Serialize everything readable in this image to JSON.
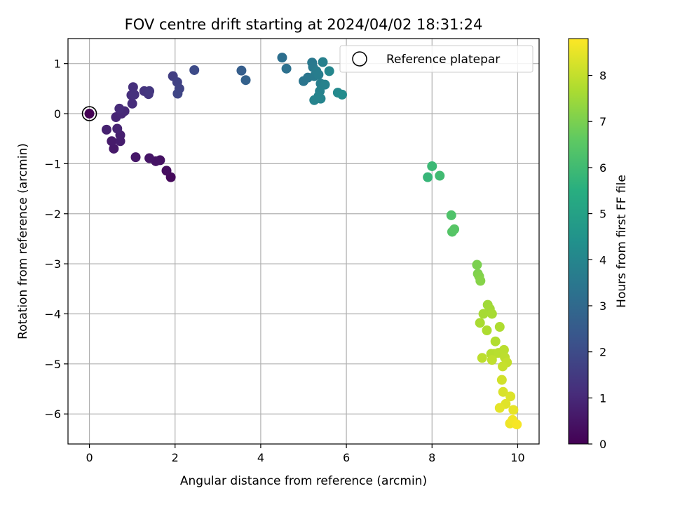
{
  "chart_data": {
    "type": "scatter",
    "title": "FOV centre drift starting at 2024/04/02 18:31:24",
    "xlabel": "Angular distance from reference (arcmin)",
    "ylabel": "Rotation from reference (arcmin)",
    "xlim": [
      -0.5,
      10.5
    ],
    "ylim": [
      -6.6,
      1.5
    ],
    "xticks": [
      0,
      2,
      4,
      6,
      8,
      10
    ],
    "yticks": [
      -6,
      -5,
      -4,
      -3,
      -2,
      -1,
      0,
      1
    ],
    "grid": true,
    "legend_position": "top-right",
    "legend_label": "Reference platepar",
    "reference_point": {
      "x": 0,
      "y": 0
    },
    "colorbar": {
      "label": "Hours from first FF file",
      "colormap": "viridis",
      "range": [
        0,
        8.8
      ],
      "ticks": [
        0,
        1,
        2,
        3,
        4,
        5,
        6,
        7,
        8
      ]
    },
    "points": [
      {
        "x": 0.0,
        "y": 0.0,
        "h": 0.0
      },
      {
        "x": 1.9,
        "y": -1.27,
        "h": 0.2
      },
      {
        "x": 1.8,
        "y": -1.14,
        "h": 0.3
      },
      {
        "x": 1.65,
        "y": -0.93,
        "h": 0.4
      },
      {
        "x": 1.55,
        "y": -0.95,
        "h": 0.45
      },
      {
        "x": 1.4,
        "y": -0.89,
        "h": 0.5
      },
      {
        "x": 1.08,
        "y": -0.87,
        "h": 0.55
      },
      {
        "x": 0.57,
        "y": -0.7,
        "h": 0.6
      },
      {
        "x": 0.52,
        "y": -0.55,
        "h": 0.65
      },
      {
        "x": 0.72,
        "y": -0.55,
        "h": 0.7
      },
      {
        "x": 0.72,
        "y": -0.43,
        "h": 0.75
      },
      {
        "x": 0.4,
        "y": -0.32,
        "h": 0.8
      },
      {
        "x": 0.65,
        "y": -0.3,
        "h": 0.85
      },
      {
        "x": 0.62,
        "y": -0.07,
        "h": 0.9
      },
      {
        "x": 0.75,
        "y": 0.0,
        "h": 0.95
      },
      {
        "x": 0.82,
        "y": 0.05,
        "h": 1.0
      },
      {
        "x": 0.7,
        "y": 0.1,
        "h": 1.05
      },
      {
        "x": 1.0,
        "y": 0.2,
        "h": 1.1
      },
      {
        "x": 0.98,
        "y": 0.37,
        "h": 1.15
      },
      {
        "x": 1.02,
        "y": 0.53,
        "h": 1.2
      },
      {
        "x": 1.05,
        "y": 0.38,
        "h": 1.25
      },
      {
        "x": 1.28,
        "y": 0.45,
        "h": 1.3
      },
      {
        "x": 1.38,
        "y": 0.39,
        "h": 1.35
      },
      {
        "x": 1.4,
        "y": 0.45,
        "h": 1.4
      },
      {
        "x": 1.95,
        "y": 0.75,
        "h": 1.6
      },
      {
        "x": 2.05,
        "y": 0.63,
        "h": 1.7
      },
      {
        "x": 2.1,
        "y": 0.5,
        "h": 1.75
      },
      {
        "x": 2.06,
        "y": 0.4,
        "h": 1.8
      },
      {
        "x": 2.45,
        "y": 0.87,
        "h": 2.0
      },
      {
        "x": 3.55,
        "y": 0.86,
        "h": 2.6
      },
      {
        "x": 3.65,
        "y": 0.67,
        "h": 2.7
      },
      {
        "x": 4.5,
        "y": 1.12,
        "h": 3.2
      },
      {
        "x": 4.6,
        "y": 0.9,
        "h": 3.25
      },
      {
        "x": 5.0,
        "y": 0.65,
        "h": 3.4
      },
      {
        "x": 5.1,
        "y": 0.72,
        "h": 3.45
      },
      {
        "x": 5.2,
        "y": 1.02,
        "h": 3.5
      },
      {
        "x": 5.22,
        "y": 0.93,
        "h": 3.55
      },
      {
        "x": 5.25,
        "y": 0.75,
        "h": 3.6
      },
      {
        "x": 5.3,
        "y": 0.85,
        "h": 3.65
      },
      {
        "x": 5.35,
        "y": 0.78,
        "h": 3.7
      },
      {
        "x": 5.4,
        "y": 0.6,
        "h": 3.75
      },
      {
        "x": 5.45,
        "y": 1.03,
        "h": 3.8
      },
      {
        "x": 5.5,
        "y": 0.58,
        "h": 3.85
      },
      {
        "x": 5.38,
        "y": 0.45,
        "h": 3.88
      },
      {
        "x": 5.35,
        "y": 0.35,
        "h": 3.9
      },
      {
        "x": 5.25,
        "y": 0.27,
        "h": 3.92
      },
      {
        "x": 5.4,
        "y": 0.3,
        "h": 3.95
      },
      {
        "x": 5.6,
        "y": 0.85,
        "h": 4.0
      },
      {
        "x": 5.8,
        "y": 0.42,
        "h": 4.1
      },
      {
        "x": 5.9,
        "y": 0.38,
        "h": 4.2
      },
      {
        "x": 7.9,
        "y": -1.27,
        "h": 5.8
      },
      {
        "x": 8.0,
        "y": -1.05,
        "h": 5.9
      },
      {
        "x": 8.18,
        "y": -1.24,
        "h": 6.0
      },
      {
        "x": 8.45,
        "y": -2.03,
        "h": 6.3
      },
      {
        "x": 8.47,
        "y": -2.36,
        "h": 6.4
      },
      {
        "x": 8.52,
        "y": -2.31,
        "h": 6.45
      },
      {
        "x": 9.05,
        "y": -3.02,
        "h": 7.0
      },
      {
        "x": 9.07,
        "y": -3.2,
        "h": 7.05
      },
      {
        "x": 9.1,
        "y": -3.25,
        "h": 7.1
      },
      {
        "x": 9.13,
        "y": -3.34,
        "h": 7.15
      },
      {
        "x": 9.3,
        "y": -3.82,
        "h": 7.5
      },
      {
        "x": 9.35,
        "y": -3.9,
        "h": 7.55
      },
      {
        "x": 9.2,
        "y": -4.0,
        "h": 7.6
      },
      {
        "x": 9.4,
        "y": -4.0,
        "h": 7.62
      },
      {
        "x": 9.12,
        "y": -4.18,
        "h": 7.65
      },
      {
        "x": 9.28,
        "y": -4.33,
        "h": 7.7
      },
      {
        "x": 9.58,
        "y": -4.26,
        "h": 7.72
      },
      {
        "x": 9.48,
        "y": -4.55,
        "h": 7.75
      },
      {
        "x": 9.38,
        "y": -4.8,
        "h": 7.8
      },
      {
        "x": 9.45,
        "y": -4.8,
        "h": 7.82
      },
      {
        "x": 9.55,
        "y": -4.78,
        "h": 7.85
      },
      {
        "x": 9.68,
        "y": -4.72,
        "h": 7.88
      },
      {
        "x": 9.7,
        "y": -4.87,
        "h": 7.9
      },
      {
        "x": 9.17,
        "y": -4.88,
        "h": 7.92
      },
      {
        "x": 9.4,
        "y": -4.92,
        "h": 7.95
      },
      {
        "x": 9.75,
        "y": -4.97,
        "h": 8.0
      },
      {
        "x": 9.65,
        "y": -5.05,
        "h": 8.05
      },
      {
        "x": 9.63,
        "y": -5.32,
        "h": 8.2
      },
      {
        "x": 9.66,
        "y": -5.56,
        "h": 8.3
      },
      {
        "x": 9.83,
        "y": -5.65,
        "h": 8.35
      },
      {
        "x": 9.72,
        "y": -5.8,
        "h": 8.4
      },
      {
        "x": 9.58,
        "y": -5.88,
        "h": 8.45
      },
      {
        "x": 9.9,
        "y": -5.92,
        "h": 8.5
      },
      {
        "x": 9.82,
        "y": -6.19,
        "h": 8.6
      },
      {
        "x": 9.88,
        "y": -6.12,
        "h": 8.65
      },
      {
        "x": 9.98,
        "y": -6.21,
        "h": 8.7
      }
    ]
  }
}
